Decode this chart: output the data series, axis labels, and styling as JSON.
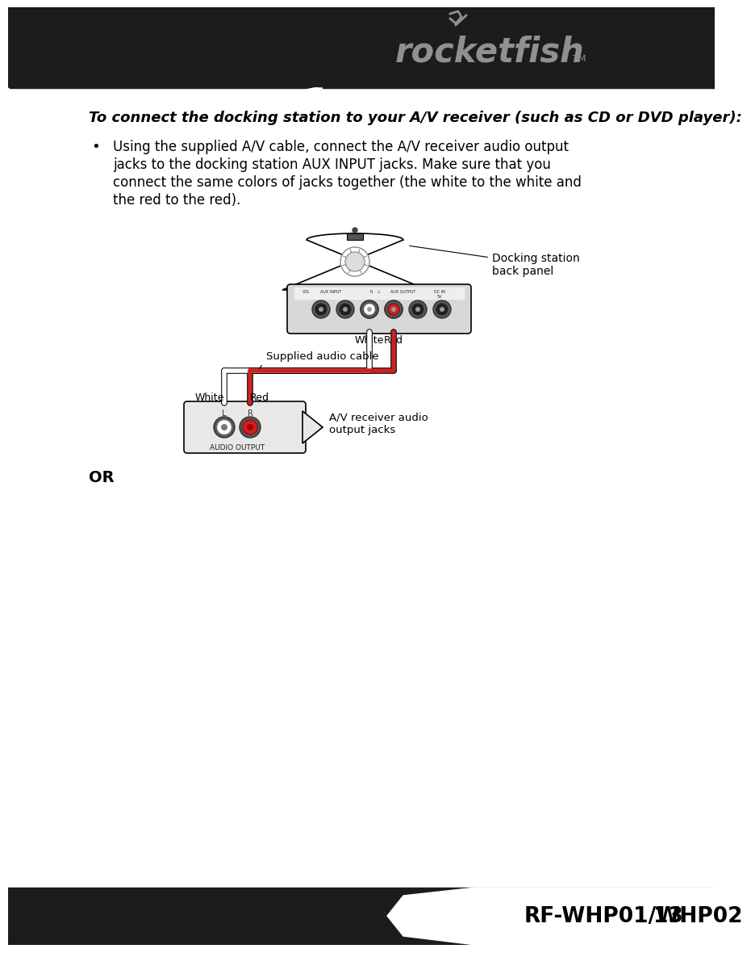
{
  "bg_color": "#ffffff",
  "header_bg": "#1c1c1c",
  "footer_bg": "#1c1c1c",
  "title_text_bold_italic": "To connect the docking station to your A/V receiver (such as CD or DVD player):",
  "bullet_lines": [
    "Using the supplied A/V cable, connect the A/V receiver audio output",
    "jacks to the docking station AUX INPUT jacks. Make sure that you",
    "connect the same colors of jacks together (the white to the white and",
    "the red to the red)."
  ],
  "or_text": "OR",
  "footer_text": "RF-WHP01/WHP02",
  "footer_page": "13",
  "rocketfish_text": "rocketfish",
  "tm_text": "TM",
  "docking_label": "Docking station\nback panel",
  "supplied_cable_label": "Supplied audio cable",
  "av_receiver_label": "A/V receiver audio\noutput jacks",
  "white_label1": "White",
  "red_label1": "Red",
  "white_label2": "White",
  "red_label2": "Red",
  "audio_output_label": "AUDIO OUTPUT",
  "L_label": "L",
  "R_label": "R"
}
